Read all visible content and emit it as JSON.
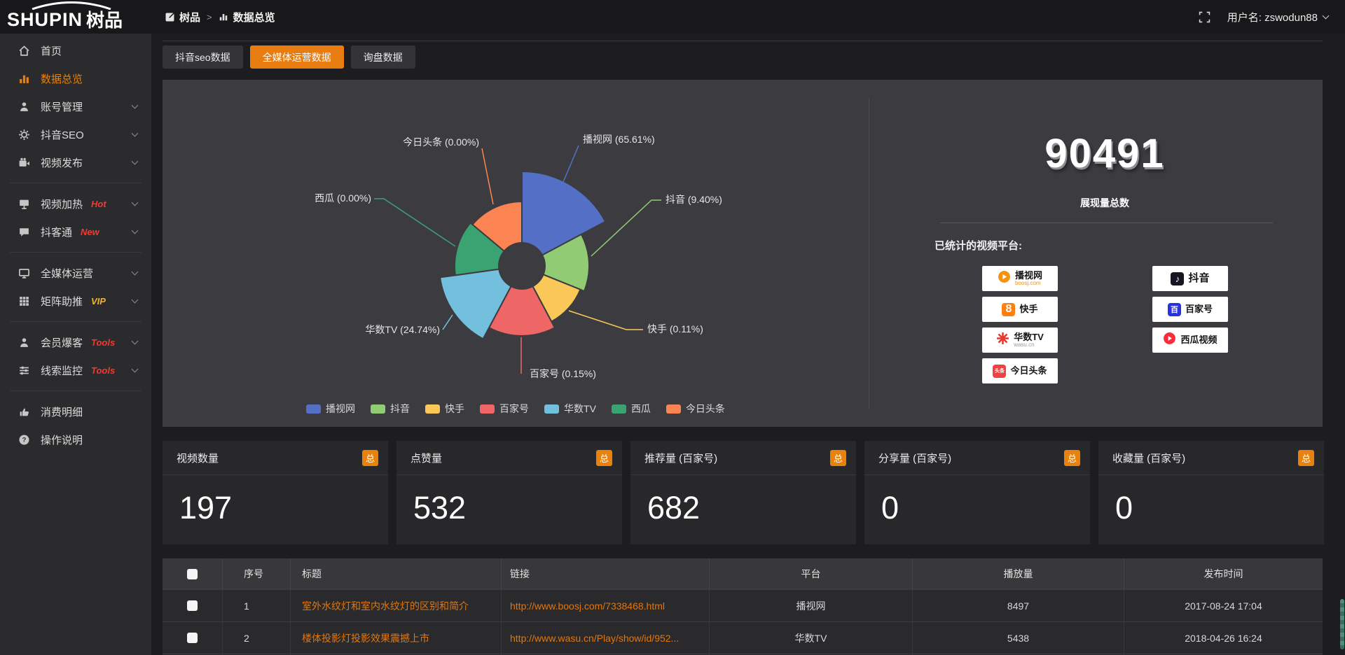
{
  "brand": {
    "name_en": "SHUPIN",
    "name_cn": "树品"
  },
  "topbar": {
    "breadcrumb_root": "树品",
    "breadcrumb_sep": ">",
    "breadcrumb_current": "数据总览",
    "username": "用户名: zswodun88"
  },
  "sidebar": {
    "items": [
      {
        "label": "首页"
      },
      {
        "label": "数据总览"
      },
      {
        "label": "账号管理"
      },
      {
        "label": "抖音SEO"
      },
      {
        "label": "视频发布"
      },
      {
        "label": "视频加热",
        "badge": "Hot"
      },
      {
        "label": "抖客通",
        "badge": "New"
      },
      {
        "label": "全媒体运营"
      },
      {
        "label": "矩阵助推",
        "badge": "VIP"
      },
      {
        "label": "会员爆客",
        "badge": "Tools"
      },
      {
        "label": "线索监控",
        "badge": "Tools"
      },
      {
        "label": "消费明细"
      },
      {
        "label": "操作说明"
      }
    ]
  },
  "tabs": [
    {
      "label": "抖音seo数据"
    },
    {
      "label": "全媒体运营数据"
    },
    {
      "label": "询盘数据"
    }
  ],
  "chart_data": {
    "type": "pie",
    "variant": "nightingale-rose",
    "unit": "%",
    "label_format": "{name} ({value}%)",
    "legend_position": "bottom",
    "series": [
      {
        "name": "播视网",
        "value": 65.61,
        "color": "#5470c6"
      },
      {
        "name": "抖音",
        "value": 9.4,
        "color": "#91cc75"
      },
      {
        "name": "快手",
        "value": 0.11,
        "color": "#fac858"
      },
      {
        "name": "百家号",
        "value": 0.15,
        "color": "#ee6666"
      },
      {
        "name": "华数TV",
        "value": 24.74,
        "color": "#73c0de"
      },
      {
        "name": "西瓜",
        "value": 0.0,
        "color": "#3ba272"
      },
      {
        "name": "今日头条",
        "value": 0.0,
        "color": "#fc8452"
      }
    ]
  },
  "summary": {
    "total_value": "90491",
    "total_label": "展现量总数",
    "platforms_label": "已统计的视频平台:",
    "platforms_col1": [
      {
        "name": "播视网",
        "sub": "boosj.com"
      },
      {
        "name": "快手",
        "sub": ""
      },
      {
        "name": "华数TV",
        "sub": "wasu.cn"
      },
      {
        "name": "今日头条",
        "sub": ""
      }
    ],
    "platforms_col2": [
      {
        "name": "抖音",
        "sub": ""
      },
      {
        "name": "百家号",
        "sub": ""
      },
      {
        "name": "西瓜视频",
        "sub": ""
      }
    ]
  },
  "stat_cards": [
    {
      "title": "视频数量",
      "badge": "总",
      "value": "197"
    },
    {
      "title": "点赞量",
      "badge": "总",
      "value": "532"
    },
    {
      "title": "推荐量 (百家号)",
      "badge": "总",
      "value": "682"
    },
    {
      "title": "分享量 (百家号)",
      "badge": "总",
      "value": "0"
    },
    {
      "title": "收藏量 (百家号)",
      "badge": "总",
      "value": "0"
    }
  ],
  "table": {
    "headers": [
      "序号",
      "标题",
      "链接",
      "平台",
      "播放量",
      "发布时间"
    ],
    "rows": [
      {
        "index": "1",
        "title": "室外水纹灯和室内水纹灯的区别和简介",
        "link": "http://www.boosj.com/7338468.html",
        "platform": "播视网",
        "plays": "8497",
        "published": "2017-08-24 17:04"
      },
      {
        "index": "2",
        "title": "楼体投影灯投影效果震撼上市",
        "link": "http://www.wasu.cn/Play/show/id/952...",
        "platform": "华数TV",
        "plays": "5438",
        "published": "2018-04-26 16:24"
      }
    ]
  }
}
